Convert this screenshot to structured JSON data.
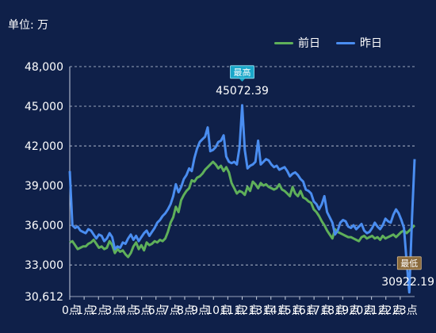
{
  "unit_label": "单位: 万",
  "colors": {
    "background": "#0f2049",
    "grid": "#c8d0e0",
    "axis_text": "#ffffff",
    "prev_day": "#5fb05a",
    "yesterday": "#4a8df0",
    "max_marker": "#1aa7c9",
    "min_marker": "#8a6a3c"
  },
  "chart_data": {
    "type": "line",
    "ylim": [
      30612,
      48000
    ],
    "yticks": [
      "30,612",
      "33,000",
      "36,000",
      "39,000",
      "42,000",
      "45,000",
      "48,000"
    ],
    "ytick_values": [
      30612,
      33000,
      36000,
      39000,
      42000,
      45000,
      48000
    ],
    "x_tick_labels": [
      "0点",
      "1点",
      "2点",
      "3点",
      "4点",
      "5点",
      "6点",
      "7点",
      "8点",
      "9点",
      "10点",
      "11点",
      "12点",
      "13点",
      "14点",
      "15点",
      "16点",
      "17点",
      "18点",
      "19点",
      "20点",
      "21点",
      "22点",
      "23点"
    ],
    "points_per_hour": 6,
    "grid": true,
    "legend_position": "top-right",
    "series": [
      {
        "name": "前日",
        "color_key": "prev_day",
        "values": [
          34700,
          34800,
          34500,
          34200,
          34300,
          34400,
          34400,
          34600,
          34700,
          34900,
          34600,
          34300,
          34400,
          34200,
          34300,
          34800,
          34500,
          33900,
          34200,
          34000,
          34100,
          33800,
          33600,
          33900,
          34400,
          34700,
          34200,
          34500,
          34100,
          34700,
          34500,
          34600,
          34800,
          34700,
          34900,
          34800,
          35000,
          35500,
          36200,
          36600,
          37400,
          37000,
          37900,
          38300,
          38600,
          38800,
          39400,
          39300,
          39600,
          39700,
          39900,
          40200,
          40400,
          40600,
          40800,
          40600,
          40300,
          40500,
          40100,
          40400,
          40000,
          39200,
          38800,
          38400,
          38600,
          38500,
          38300,
          38900,
          38600,
          39300,
          39100,
          38800,
          39200,
          39000,
          39100,
          38900,
          38800,
          38700,
          38800,
          39100,
          38700,
          38600,
          38400,
          38200,
          38900,
          38400,
          38200,
          38600,
          38100,
          38000,
          37800,
          37700,
          37200,
          37000,
          36700,
          36300,
          36000,
          35600,
          35300,
          35000,
          35700,
          35500,
          35400,
          35300,
          35200,
          35100,
          35100,
          35000,
          34900,
          34800,
          35100,
          35200,
          35000,
          35100,
          35200,
          35000,
          35100,
          34900,
          35200,
          35000,
          35100,
          35200,
          35300,
          35100,
          35300,
          35500,
          35600,
          35400,
          35600,
          35800,
          36000
        ]
      },
      {
        "name": "昨日",
        "color_key": "yesterday",
        "values": [
          40100,
          36000,
          35800,
          35900,
          35600,
          35500,
          35400,
          35700,
          35600,
          35300,
          35000,
          35300,
          35200,
          34800,
          35000,
          35400,
          35100,
          34200,
          34400,
          34300,
          34700,
          34600,
          35000,
          35300,
          34900,
          35200,
          34800,
          35100,
          35400,
          35600,
          35200,
          35500,
          35800,
          36200,
          36400,
          36700,
          36900,
          37200,
          37600,
          38200,
          39100,
          38500,
          38900,
          39500,
          39800,
          40300,
          40100,
          41100,
          41800,
          42300,
          42500,
          42700,
          43400,
          41600,
          41700,
          41900,
          42300,
          42400,
          42800,
          41200,
          40800,
          40700,
          40800,
          40600,
          41900,
          45072,
          41700,
          40300,
          40500,
          40600,
          40800,
          42400,
          40600,
          40800,
          41000,
          40900,
          40600,
          40400,
          40500,
          40200,
          40300,
          40400,
          40100,
          39700,
          39900,
          40000,
          39800,
          39500,
          39300,
          38700,
          38600,
          38400,
          37800,
          37600,
          37200,
          37600,
          38200,
          37000,
          36600,
          36200,
          35300,
          35600,
          36200,
          36400,
          36300,
          35900,
          35800,
          36000,
          35700,
          35900,
          36100,
          35600,
          35400,
          35500,
          35800,
          36200,
          35900,
          35700,
          36000,
          36500,
          36300,
          36200,
          36800,
          37200,
          36900,
          36400,
          35800,
          33200,
          30922,
          36500,
          41000
        ]
      }
    ],
    "markers": [
      {
        "type": "max",
        "series": "昨日",
        "label": "最高",
        "value_label": "45072.39",
        "value": 45072.39
      },
      {
        "type": "min",
        "series": "昨日",
        "label": "最低",
        "value_label": "30922.19",
        "value": 30922.19
      }
    ]
  }
}
